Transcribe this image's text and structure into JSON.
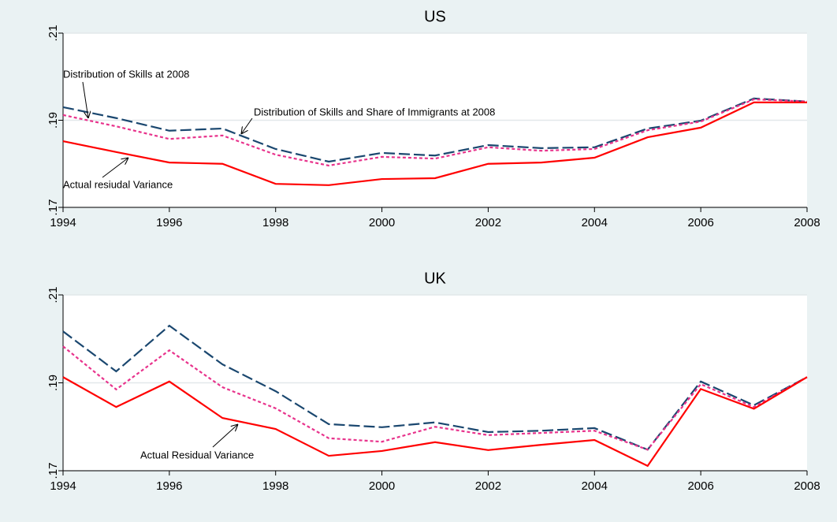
{
  "chart_data": [
    {
      "type": "line",
      "title": "US",
      "x": [
        1994,
        1995,
        1996,
        1997,
        1998,
        1999,
        2000,
        2001,
        2002,
        2003,
        2004,
        2005,
        2006,
        2007,
        2008
      ],
      "xlim": [
        1994,
        2008
      ],
      "xticks": [
        1994,
        1996,
        1998,
        2000,
        2002,
        2004,
        2006,
        2008
      ],
      "ylim": [
        0.17,
        0.21
      ],
      "yticks": [
        {
          "value": 0.17,
          "label": ".17"
        },
        {
          "value": 0.19,
          "label": ".19"
        },
        {
          "value": 0.21,
          "label": ".21"
        }
      ],
      "grid": true,
      "series": [
        {
          "name": "Distribution of Skills at 2008",
          "color": "#1a476f",
          "style": "dashed",
          "values": [
            0.193,
            0.1905,
            0.1876,
            0.1881,
            0.1834,
            0.1805,
            0.1825,
            0.1819,
            0.1843,
            0.1836,
            0.1838,
            0.1881,
            0.1899,
            0.195,
            0.1943
          ]
        },
        {
          "name": "Distribution of Skills and Share of Immigrants at 2008",
          "color": "#e8338c",
          "style": "dotted",
          "values": [
            0.1912,
            0.1886,
            0.1857,
            0.1865,
            0.1821,
            0.1796,
            0.1816,
            0.1812,
            0.1838,
            0.183,
            0.1834,
            0.1877,
            0.1897,
            0.1948,
            0.1943
          ]
        },
        {
          "name": "Actual resiudal Variance",
          "color": "#ff0000",
          "style": "solid",
          "values": [
            0.1852,
            0.1827,
            0.1803,
            0.18,
            0.1754,
            0.1751,
            0.1765,
            0.1767,
            0.18,
            0.1803,
            0.1814,
            0.1861,
            0.1883,
            0.1941,
            0.1941
          ]
        }
      ]
    },
    {
      "type": "line",
      "title": "UK",
      "x": [
        1994,
        1995,
        1996,
        1997,
        1998,
        1999,
        2000,
        2001,
        2002,
        2003,
        2004,
        2005,
        2006,
        2007,
        2008
      ],
      "xlim": [
        1994,
        2008
      ],
      "xticks": [
        1994,
        1996,
        1998,
        2000,
        2002,
        2004,
        2006,
        2008
      ],
      "ylim": [
        0.17,
        0.21
      ],
      "yticks": [
        {
          "value": 0.17,
          "label": ".17"
        },
        {
          "value": 0.19,
          "label": ".19"
        },
        {
          "value": 0.21,
          "label": ".21"
        }
      ],
      "grid": true,
      "series": [
        {
          "color": "#1a476f",
          "style": "dashed",
          "values": [
            0.2017,
            0.1926,
            0.203,
            0.1942,
            0.1881,
            0.1806,
            0.1799,
            0.181,
            0.1788,
            0.1791,
            0.1797,
            0.1748,
            0.1903,
            0.1849,
            0.1913
          ]
        },
        {
          "color": "#e8338c",
          "style": "dotted",
          "values": [
            0.1983,
            0.1885,
            0.1974,
            0.189,
            0.1842,
            0.1774,
            0.1766,
            0.18,
            0.1781,
            0.1786,
            0.1791,
            0.1748,
            0.1897,
            0.1845,
            0.1913
          ]
        },
        {
          "name": "Actual Residual Variance",
          "color": "#ff0000",
          "style": "solid",
          "values": [
            0.1913,
            0.1845,
            0.1903,
            0.182,
            0.1795,
            0.1734,
            0.1745,
            0.1765,
            0.1747,
            0.1759,
            0.177,
            0.1711,
            0.1886,
            0.1841,
            0.1913
          ]
        }
      ]
    }
  ]
}
